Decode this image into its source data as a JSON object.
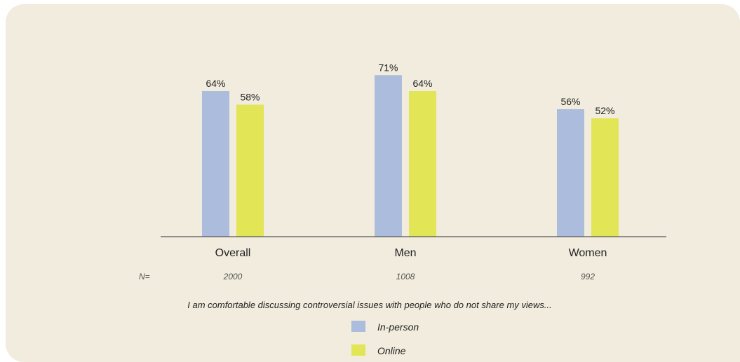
{
  "chart_data": {
    "type": "bar",
    "categories": [
      "Overall",
      "Men",
      "Women"
    ],
    "series": [
      {
        "name": "In-person",
        "values": [
          64,
          71,
          56
        ],
        "labels": [
          "64%",
          "71%",
          "56%"
        ],
        "color": "#abbcdc"
      },
      {
        "name": "Online",
        "values": [
          58,
          64,
          52
        ],
        "labels": [
          "58%",
          "64%",
          "52%"
        ],
        "color": "#e2e556"
      }
    ],
    "n_label": "N=",
    "n_values": [
      "2000",
      "1008",
      "992"
    ],
    "caption": "I am comfortable discussing controversial issues with people who do not share my views...",
    "ylim": [
      0,
      80
    ],
    "grid": false,
    "legend_position": "bottom-center",
    "axis_color": "#555555"
  }
}
